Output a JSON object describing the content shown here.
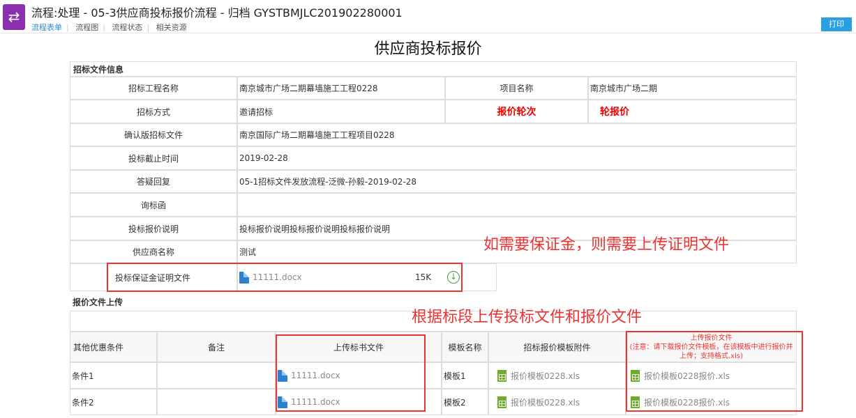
{
  "header": {
    "title": "流程:处理 - 05-3供应商投标报价流程 - 归档 GYSTBMJLC201902280001",
    "tabs": [
      {
        "label": "流程表单",
        "active": true
      },
      {
        "label": "流程图"
      },
      {
        "label": "流程状态"
      },
      {
        "label": "相关资源"
      }
    ],
    "print_label": "打印"
  },
  "page_title": "供应商投标报价",
  "tender_info": {
    "section": "招标文件信息",
    "rows": [
      {
        "label": "招标工程名称",
        "value": "南京城市广场二期幕墙施工工程0228",
        "label2": "项目名称",
        "value2": "南京城市广场二期"
      },
      {
        "label": "招标方式",
        "value": "邀请招标",
        "label2": "报价轮次",
        "value2": "轮报价"
      },
      {
        "label": "确认版招标文件",
        "value": "南京国际广场二期幕墙施工工程项目0228"
      },
      {
        "label": "投标截止时间",
        "value": "2019-02-28"
      },
      {
        "label": "答疑回复",
        "value": "05-1招标文件发放流程-泛微-孙毅-2019-02-28"
      },
      {
        "label": "询标函",
        "value": ""
      },
      {
        "label": "投标报价说明",
        "value": "投标报价说明投标报价说明投标报价说明"
      },
      {
        "label": "供应商名称",
        "value": "测试"
      }
    ],
    "deposit": {
      "label": "投标保证金证明文件",
      "file": "11111.docx",
      "size": "15K"
    }
  },
  "upload": {
    "section": "报价文件上传",
    "headers": [
      "其他优惠条件",
      "备注",
      "上传标书文件",
      "模板名称",
      "招标报价模板附件",
      "上传报价文件",
      "(注意：请下载报价文件模板，在该模板中进行报价并上传；支持格式.xls)"
    ],
    "rows": [
      {
        "cond": "条件1",
        "note": "",
        "bid_file": "11111.docx",
        "template": "模板1",
        "template_file": "报价模板0228.xls",
        "quote_file": "报价模板0228报价.xls"
      },
      {
        "cond": "条件2",
        "note": "",
        "bid_file": "11111.docx",
        "template": "模板2",
        "template_file": "报价模板0228.xls",
        "quote_file": "报价模板0228报价.xls"
      }
    ]
  },
  "annotations": [
    "如需要保证金，则需要上传证明文件",
    "根据标段上传投标文件和报价文件"
  ],
  "colors": {
    "accent": "#2a9ee3",
    "logo": "#8a2fae",
    "annotation": "#e33333"
  }
}
